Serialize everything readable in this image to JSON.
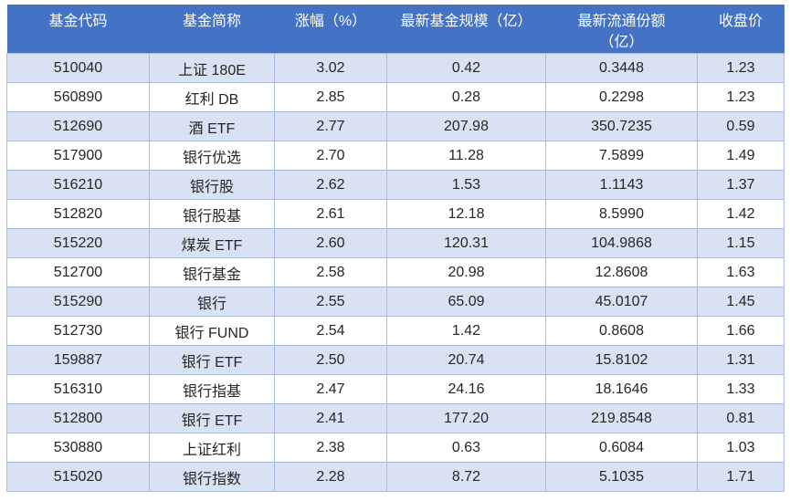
{
  "colors": {
    "header_bg": "#4472C4",
    "header_text": "#FFFFFF",
    "band_row_bg": "#D9E2F3",
    "row_bg": "#FFFFFF",
    "border": "#A9BBE3",
    "text": "#262626",
    "page_bg": "#FFFFFF"
  },
  "table": {
    "columns": [
      {
        "key": "fund-code",
        "label": "基金代码"
      },
      {
        "key": "fund-name",
        "label": "基金简称"
      },
      {
        "key": "change-pct",
        "label": "涨幅（%）"
      },
      {
        "key": "fund-scale",
        "label": "最新基金规模（亿）"
      },
      {
        "key": "circulating-shares",
        "label": "最新流通份额\n（亿）"
      },
      {
        "key": "close-price",
        "label": "收盘价"
      }
    ],
    "rows": [
      [
        "510040",
        "上证 180E",
        "3.02",
        "0.42",
        "0.3448",
        "1.23"
      ],
      [
        "560890",
        "红利 DB",
        "2.85",
        "0.28",
        "0.2298",
        "1.23"
      ],
      [
        "512690",
        "酒 ETF",
        "2.77",
        "207.98",
        "350.7235",
        "0.59"
      ],
      [
        "517900",
        "银行优选",
        "2.70",
        "11.28",
        "7.5899",
        "1.49"
      ],
      [
        "516210",
        "银行股",
        "2.62",
        "1.53",
        "1.1143",
        "1.37"
      ],
      [
        "512820",
        "银行股基",
        "2.61",
        "12.18",
        "8.5990",
        "1.42"
      ],
      [
        "515220",
        "煤炭 ETF",
        "2.60",
        "120.31",
        "104.9868",
        "1.15"
      ],
      [
        "512700",
        "银行基金",
        "2.58",
        "20.98",
        "12.8608",
        "1.63"
      ],
      [
        "515290",
        "银行",
        "2.55",
        "65.09",
        "45.0107",
        "1.45"
      ],
      [
        "512730",
        "银行 FUND",
        "2.54",
        "1.42",
        "0.8608",
        "1.66"
      ],
      [
        "159887",
        "银行 ETF",
        "2.50",
        "20.74",
        "15.8102",
        "1.31"
      ],
      [
        "516310",
        "银行指基",
        "2.47",
        "24.16",
        "18.1646",
        "1.33"
      ],
      [
        "512800",
        "银行 ETF",
        "2.41",
        "177.20",
        "219.8548",
        "0.81"
      ],
      [
        "530880",
        "上证红利",
        "2.38",
        "0.63",
        "0.6084",
        "1.03"
      ],
      [
        "515020",
        "银行指数",
        "2.28",
        "8.72",
        "5.1035",
        "1.71"
      ]
    ]
  }
}
